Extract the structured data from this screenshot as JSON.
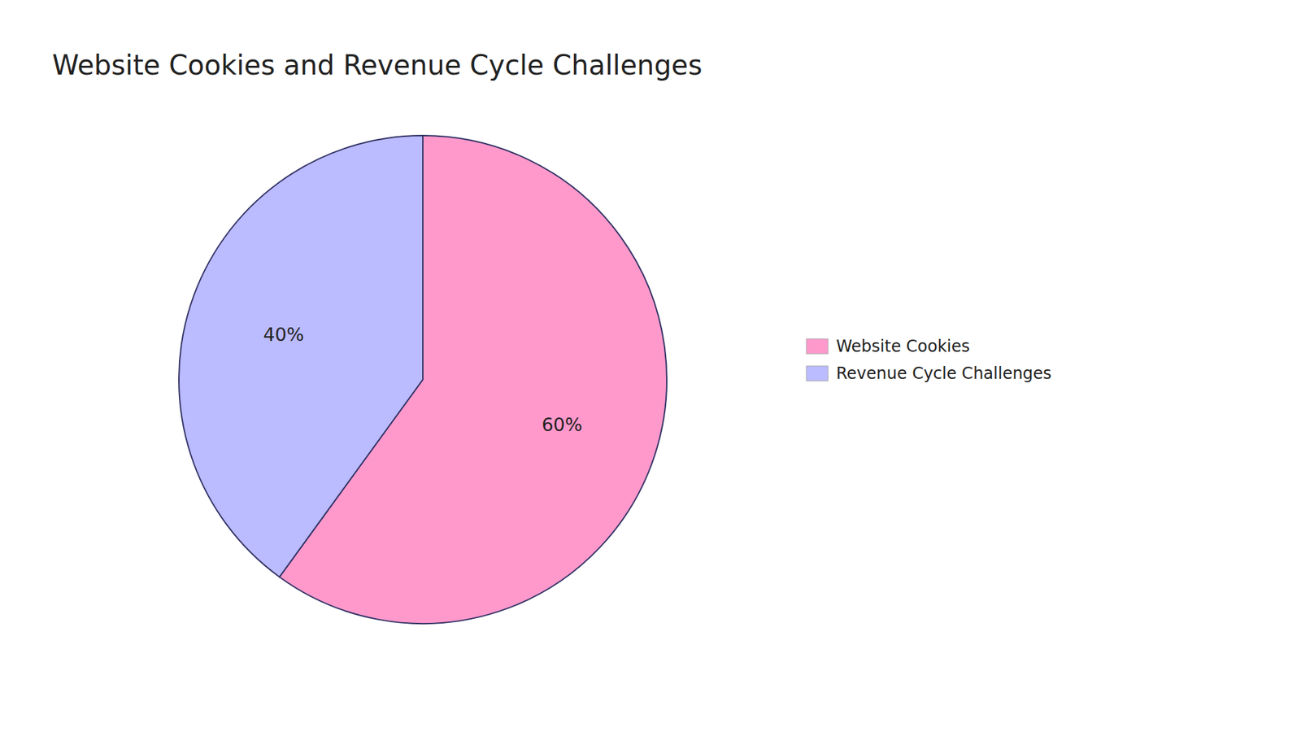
{
  "chart_data": {
    "type": "pie",
    "title": "Website Cookies and Revenue Cycle Challenges",
    "categories": [
      "Website Cookies",
      "Revenue Cycle Challenges"
    ],
    "values": [
      60,
      40
    ],
    "value_labels": [
      "60%",
      "40%"
    ],
    "colors": [
      "#FF99CC",
      "#BBBBFF"
    ],
    "data_labels": true,
    "legend": "right"
  }
}
